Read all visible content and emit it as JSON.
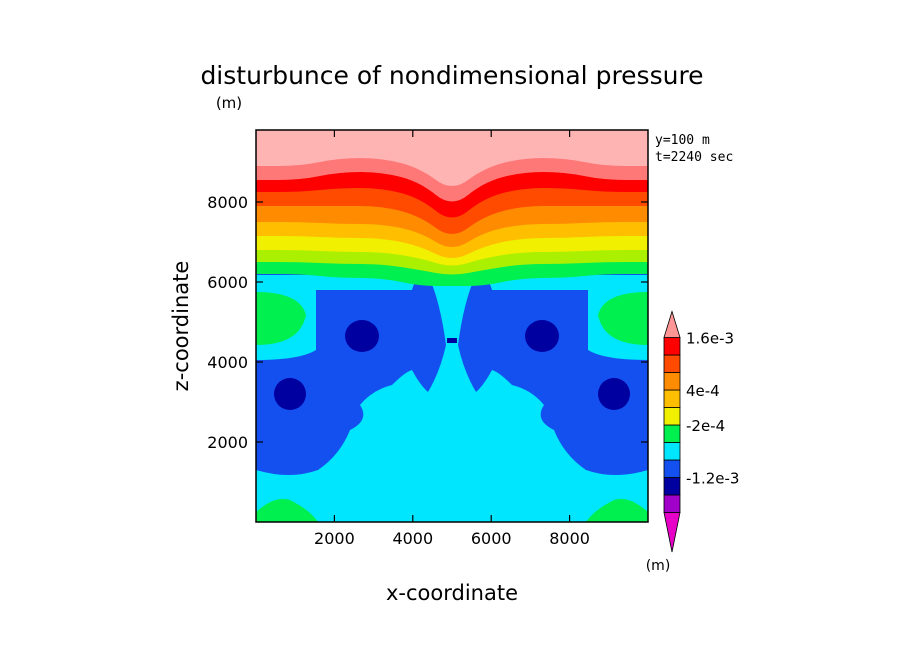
{
  "chart_data": {
    "type": "heatmap",
    "title": "disturbunce of nondimensional pressure",
    "title_unit": "(m)",
    "xlabel": "x-coordinate",
    "ylabel": "z-coordinate",
    "xlim": [
      0,
      10000
    ],
    "ylim": [
      0,
      9800
    ],
    "xticks": [
      2000,
      4000,
      6000,
      8000
    ],
    "yticks": [
      2000,
      4000,
      6000,
      8000
    ],
    "info": [
      "y=100 m",
      "t=2240 sec"
    ],
    "colorbar": {
      "unit": "(m)",
      "tick_labels": [
        {
          "label": "1.6e-3",
          "value": 0.0016
        },
        {
          "label": "4e-4",
          "value": 0.0004
        },
        {
          "label": "-2e-4",
          "value": -0.0002
        },
        {
          "label": "-1.2e-3",
          "value": -0.0012
        }
      ],
      "colors": [
        "#e600c8",
        "#a000c8",
        "#0000a0",
        "#1450f0",
        "#00e6ff",
        "#00f050",
        "#f0f000",
        "#ffbe00",
        "#ff8c00",
        "#ff4b00",
        "#ff0000",
        "#ff9696"
      ]
    },
    "color_levels": {
      "dark_blue": "#0000a0",
      "blue": "#1450f0",
      "cyan": "#00e6ff",
      "green": "#00f050",
      "lime": "#aaf000",
      "yellow": "#f0f000",
      "gold": "#ffbe00",
      "orange": "#ff8c00",
      "dark_orange": "#ff4b00",
      "red": "#ff0000",
      "salmon": "#ff7878",
      "pink": "#ffb4b4"
    }
  }
}
